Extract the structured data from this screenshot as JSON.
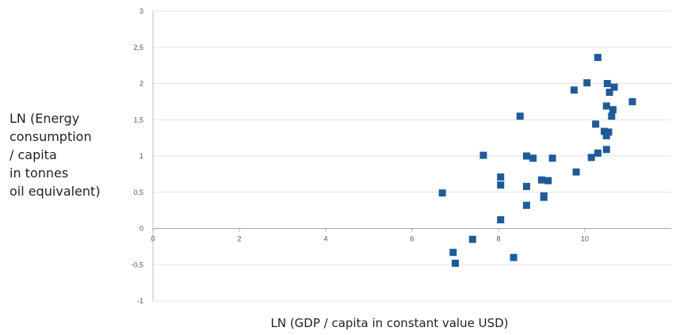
{
  "chart_data": {
    "type": "scatter",
    "title": "",
    "xlabel": "LN (GDP / capita in constant value USD)",
    "ylabel_lines": [
      "LN (Energy",
      "consumption",
      "/ capita",
      "in tonnes",
      "oil equivalent)"
    ],
    "xlim": [
      0,
      12
    ],
    "ylim": [
      -1,
      3
    ],
    "x_ticks": [
      0,
      2,
      4,
      6,
      8,
      10
    ],
    "x_tick_labels": [
      "0",
      "2",
      "4",
      "6",
      "8",
      "10"
    ],
    "y_ticks": [
      -1,
      -0.5,
      0,
      0.5,
      1,
      1.5,
      2,
      2.5,
      3
    ],
    "y_tick_labels": [
      "-1",
      "-0,5",
      "0",
      "0,5",
      "1",
      "1,5",
      "2",
      "2,5",
      "3"
    ],
    "grid": "horizontal",
    "legend": "none",
    "marker_color": "#1f5b99",
    "series": [
      {
        "points": [
          [
            6.7,
            0.49
          ],
          [
            6.95,
            -0.33
          ],
          [
            7.0,
            -0.48
          ],
          [
            7.4,
            -0.15
          ],
          [
            7.65,
            1.01
          ],
          [
            8.05,
            0.71
          ],
          [
            8.05,
            0.6
          ],
          [
            8.05,
            0.12
          ],
          [
            8.35,
            -0.4
          ],
          [
            8.5,
            1.55
          ],
          [
            8.65,
            1.0
          ],
          [
            8.65,
            0.58
          ],
          [
            8.65,
            0.32
          ],
          [
            8.8,
            0.97
          ],
          [
            9.0,
            0.67
          ],
          [
            9.05,
            0.45
          ],
          [
            9.05,
            0.43
          ],
          [
            9.15,
            0.66
          ],
          [
            9.25,
            0.97
          ],
          [
            9.75,
            1.91
          ],
          [
            9.8,
            0.78
          ],
          [
            10.05,
            2.01
          ],
          [
            10.15,
            0.98
          ],
          [
            10.25,
            1.44
          ],
          [
            10.3,
            2.36
          ],
          [
            10.3,
            1.04
          ],
          [
            10.45,
            1.34
          ],
          [
            10.5,
            1.28
          ],
          [
            10.5,
            1.09
          ],
          [
            10.5,
            1.69
          ],
          [
            10.52,
            2.0
          ],
          [
            10.55,
            1.33
          ],
          [
            10.57,
            1.88
          ],
          [
            10.62,
            1.55
          ],
          [
            10.65,
            1.64
          ],
          [
            10.68,
            1.95
          ],
          [
            11.1,
            1.75
          ]
        ]
      }
    ]
  }
}
